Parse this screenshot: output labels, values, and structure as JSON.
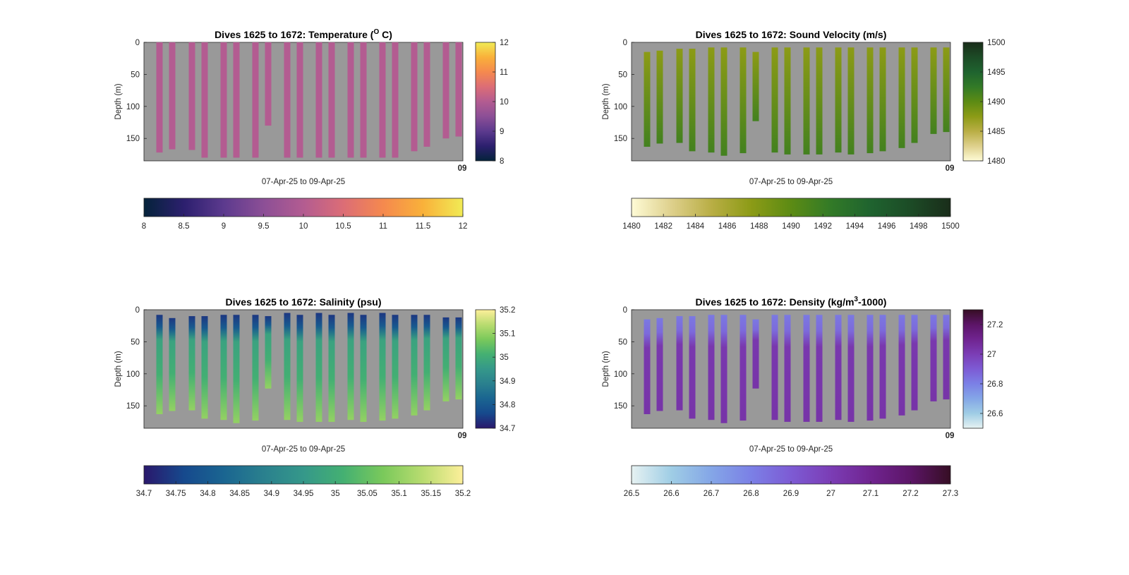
{
  "figure": {
    "background": "#ffffff",
    "axes_background": "#999999"
  },
  "chart_data": [
    {
      "type": "heatmap",
      "id": "temperature",
      "title": "Dives 1625 to 1672: Temperature (",
      "title_superscript": "O",
      "title_suffix": " C)",
      "xlabel": "07-Apr-25 to 09-Apr-25",
      "ylabel": "Depth (m)",
      "ylim": [
        185,
        0
      ],
      "y_ticks": [
        "0",
        "50",
        "100",
        "150"
      ],
      "x_tick_text": "09",
      "colormap": "thermal",
      "clim": [
        8,
        12
      ],
      "colorbar_ticks": [
        "8",
        "9",
        "10",
        "11",
        "12"
      ],
      "hcolorbar_ticks": [
        "8",
        "8.5",
        "9",
        "9.5",
        "10",
        "10.5",
        "11",
        "11.5",
        "12"
      ],
      "field_value": 9.7,
      "profiles": [
        {
          "dive": 1,
          "max_depth": 172
        },
        {
          "dive": 2,
          "max_depth": 167
        },
        {
          "dive": 3,
          "max_depth": 168
        },
        {
          "dive": 4,
          "max_depth": 180
        },
        {
          "dive": 5,
          "max_depth": 180
        },
        {
          "dive": 6,
          "max_depth": 180
        },
        {
          "dive": 7,
          "max_depth": 180
        },
        {
          "dive": 8,
          "max_depth": 130
        },
        {
          "dive": 9,
          "max_depth": 180
        },
        {
          "dive": 10,
          "max_depth": 180
        },
        {
          "dive": 11,
          "max_depth": 180
        },
        {
          "dive": 12,
          "max_depth": 180
        },
        {
          "dive": 13,
          "max_depth": 180
        },
        {
          "dive": 14,
          "max_depth": 180
        },
        {
          "dive": 15,
          "max_depth": 180
        },
        {
          "dive": 16,
          "max_depth": 180
        },
        {
          "dive": 17,
          "max_depth": 170
        },
        {
          "dive": 18,
          "max_depth": 163
        },
        {
          "dive": 19,
          "max_depth": 150
        },
        {
          "dive": 20,
          "max_depth": 147
        }
      ],
      "colors": {
        "field": "#b35c91"
      }
    },
    {
      "type": "heatmap",
      "id": "sound_velocity",
      "title": "Dives 1625 to 1672: Sound Velocity (m/s)",
      "xlabel": "07-Apr-25 to 09-Apr-25",
      "ylabel": "Depth (m)",
      "ylim": [
        185,
        0
      ],
      "y_ticks": [
        "0",
        "50",
        "100",
        "150"
      ],
      "x_tick_text": "09",
      "colormap": "speed",
      "clim": [
        1480,
        1500
      ],
      "colorbar_ticks": [
        "1480",
        "1485",
        "1490",
        "1495",
        "1500"
      ],
      "hcolorbar_ticks": [
        "1480",
        "1482",
        "1484",
        "1486",
        "1488",
        "1490",
        "1492",
        "1494",
        "1496",
        "1498",
        "1500"
      ],
      "surface_value": 1487.5,
      "bottom_value": 1491.5,
      "profiles": [
        {
          "dive": 1,
          "top": 15,
          "max_depth": 163
        },
        {
          "dive": 2,
          "top": 13,
          "max_depth": 158
        },
        {
          "dive": 3,
          "top": 10,
          "max_depth": 157
        },
        {
          "dive": 4,
          "top": 10,
          "max_depth": 170
        },
        {
          "dive": 5,
          "top": 8,
          "max_depth": 172
        },
        {
          "dive": 6,
          "top": 8,
          "max_depth": 177
        },
        {
          "dive": 7,
          "top": 8,
          "max_depth": 173
        },
        {
          "dive": 8,
          "top": 15,
          "max_depth": 123
        },
        {
          "dive": 9,
          "top": 8,
          "max_depth": 172
        },
        {
          "dive": 10,
          "top": 8,
          "max_depth": 175
        },
        {
          "dive": 11,
          "top": 8,
          "max_depth": 175
        },
        {
          "dive": 12,
          "top": 8,
          "max_depth": 175
        },
        {
          "dive": 13,
          "top": 8,
          "max_depth": 172
        },
        {
          "dive": 14,
          "top": 8,
          "max_depth": 175
        },
        {
          "dive": 15,
          "top": 8,
          "max_depth": 173
        },
        {
          "dive": 16,
          "top": 8,
          "max_depth": 170
        },
        {
          "dive": 17,
          "top": 8,
          "max_depth": 165
        },
        {
          "dive": 18,
          "top": 8,
          "max_depth": 157
        },
        {
          "dive": 19,
          "top": 8,
          "max_depth": 143
        },
        {
          "dive": 20,
          "top": 8,
          "max_depth": 140
        }
      ]
    },
    {
      "type": "heatmap",
      "id": "salinity",
      "title": "Dives 1625 to 1672: Salinity (psu)",
      "xlabel": "07-Apr-25 to 09-Apr-25",
      "ylabel": "Depth (m)",
      "ylim": [
        185,
        0
      ],
      "y_ticks": [
        "0",
        "50",
        "100",
        "150"
      ],
      "x_tick_text": "09",
      "colormap": "haline",
      "clim": [
        34.7,
        35.2
      ],
      "colorbar_ticks": [
        "34.7",
        "34.8",
        "34.9",
        "35",
        "35.1",
        "35.2"
      ],
      "hcolorbar_ticks": [
        "34.7",
        "34.75",
        "34.8",
        "34.85",
        "34.9",
        "34.95",
        "35",
        "35.05",
        "35.1",
        "35.15",
        "35.2"
      ],
      "surface_value": 34.76,
      "bottom_value": 35.1,
      "profiles": [
        {
          "dive": 1,
          "top": 8,
          "max_depth": 163
        },
        {
          "dive": 2,
          "top": 13,
          "max_depth": 158
        },
        {
          "dive": 3,
          "top": 10,
          "max_depth": 157
        },
        {
          "dive": 4,
          "top": 10,
          "max_depth": 170
        },
        {
          "dive": 5,
          "top": 8,
          "max_depth": 172
        },
        {
          "dive": 6,
          "top": 8,
          "max_depth": 177
        },
        {
          "dive": 7,
          "top": 8,
          "max_depth": 173
        },
        {
          "dive": 8,
          "top": 10,
          "max_depth": 123
        },
        {
          "dive": 9,
          "top": 5,
          "max_depth": 172
        },
        {
          "dive": 10,
          "top": 8,
          "max_depth": 175
        },
        {
          "dive": 11,
          "top": 5,
          "max_depth": 175
        },
        {
          "dive": 12,
          "top": 8,
          "max_depth": 175
        },
        {
          "dive": 13,
          "top": 5,
          "max_depth": 172
        },
        {
          "dive": 14,
          "top": 8,
          "max_depth": 175
        },
        {
          "dive": 15,
          "top": 5,
          "max_depth": 173
        },
        {
          "dive": 16,
          "top": 8,
          "max_depth": 170
        },
        {
          "dive": 17,
          "top": 8,
          "max_depth": 165
        },
        {
          "dive": 18,
          "top": 8,
          "max_depth": 157
        },
        {
          "dive": 19,
          "top": 12,
          "max_depth": 143
        },
        {
          "dive": 20,
          "top": 12,
          "max_depth": 140
        }
      ]
    },
    {
      "type": "heatmap",
      "id": "density",
      "title": "Dives 1625 to 1672: Density (kg/m",
      "title_superscript": "3",
      "title_suffix": "-1000)",
      "xlabel": "07-Apr-25 to 09-Apr-25",
      "ylabel": "Depth (m)",
      "ylim": [
        185,
        0
      ],
      "y_ticks": [
        "0",
        "50",
        "100",
        "150"
      ],
      "x_tick_text": "09",
      "colormap": "dense",
      "clim": [
        26.5,
        27.3
      ],
      "colorbar_ticks": [
        "26.6",
        "26.8",
        "27",
        "27.2"
      ],
      "hcolorbar_ticks": [
        "26.5",
        "26.6",
        "26.7",
        "26.8",
        "26.9",
        "27",
        "27.1",
        "27.2",
        "27.3"
      ],
      "surface_value": 26.82,
      "bottom_value": 27.02,
      "profiles": [
        {
          "dive": 1,
          "top": 15,
          "max_depth": 163
        },
        {
          "dive": 2,
          "top": 13,
          "max_depth": 158
        },
        {
          "dive": 3,
          "top": 10,
          "max_depth": 157
        },
        {
          "dive": 4,
          "top": 10,
          "max_depth": 170
        },
        {
          "dive": 5,
          "top": 8,
          "max_depth": 172
        },
        {
          "dive": 6,
          "top": 8,
          "max_depth": 177
        },
        {
          "dive": 7,
          "top": 8,
          "max_depth": 173
        },
        {
          "dive": 8,
          "top": 15,
          "max_depth": 123
        },
        {
          "dive": 9,
          "top": 8,
          "max_depth": 172
        },
        {
          "dive": 10,
          "top": 8,
          "max_depth": 175
        },
        {
          "dive": 11,
          "top": 8,
          "max_depth": 175
        },
        {
          "dive": 12,
          "top": 8,
          "max_depth": 175
        },
        {
          "dive": 13,
          "top": 8,
          "max_depth": 172
        },
        {
          "dive": 14,
          "top": 8,
          "max_depth": 175
        },
        {
          "dive": 15,
          "top": 8,
          "max_depth": 173
        },
        {
          "dive": 16,
          "top": 8,
          "max_depth": 170
        },
        {
          "dive": 17,
          "top": 8,
          "max_depth": 165
        },
        {
          "dive": 18,
          "top": 8,
          "max_depth": 157
        },
        {
          "dive": 19,
          "top": 8,
          "max_depth": 143
        },
        {
          "dive": 20,
          "top": 8,
          "max_depth": 140
        }
      ]
    }
  ]
}
